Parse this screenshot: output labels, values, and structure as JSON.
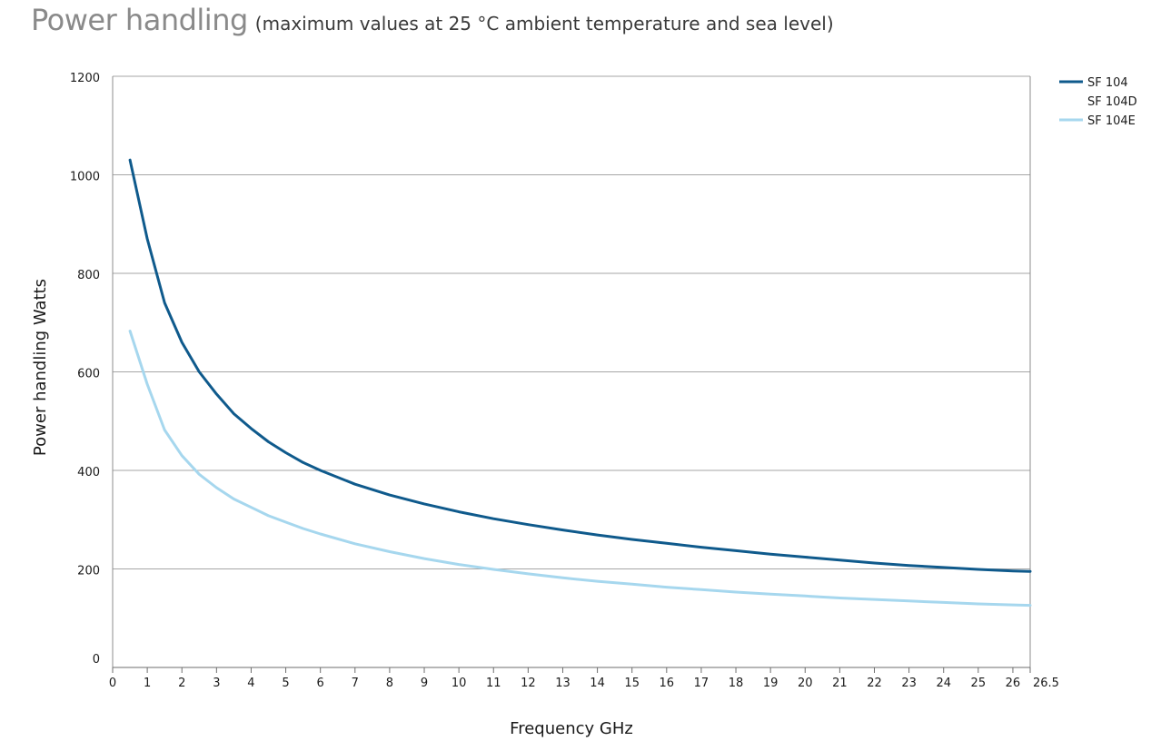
{
  "header": {
    "title": "Power handling",
    "note": "(maximum values at 25 °C ambient temperature and sea level)"
  },
  "chart_data": {
    "type": "line",
    "title": "Power handling",
    "subtitle": "(maximum values at 25 °C ambient temperature and sea level)",
    "xlabel": "Frequency GHz",
    "ylabel": "Power handling Watts",
    "xlim": [
      0,
      26.5
    ],
    "ylim": [
      0,
      1200
    ],
    "xticks": [
      0,
      1,
      2,
      3,
      4,
      5,
      6,
      7,
      8,
      9,
      10,
      11,
      12,
      13,
      14,
      15,
      16,
      17,
      18,
      19,
      20,
      21,
      22,
      23,
      24,
      25,
      26,
      26.5
    ],
    "xtick_labels": [
      "0",
      "1",
      "2",
      "3",
      "4",
      "5",
      "6",
      "7",
      "8",
      "9",
      "10",
      "11",
      "12",
      "13",
      "14",
      "15",
      "16",
      "17",
      "18",
      "19",
      "20",
      "21",
      "22",
      "23",
      "24",
      "25",
      "26",
      "26.5"
    ],
    "yticks": [
      0,
      200,
      400,
      600,
      800,
      1000,
      1200
    ],
    "ytick_labels": [
      "0",
      "200",
      "400",
      "600",
      "800",
      "1000",
      "1200"
    ],
    "grid": "horizontal",
    "legend_position": "top-right, outside plot",
    "series": [
      {
        "name": "SF 104",
        "color": "#0f5a8c",
        "x": [
          0.5,
          1,
          1.5,
          2,
          2.5,
          3,
          3.5,
          4,
          4.5,
          5,
          5.5,
          6,
          7,
          8,
          9,
          10,
          11,
          12,
          13,
          14,
          15,
          16,
          17,
          18,
          19,
          20,
          21,
          22,
          23,
          24,
          25,
          26,
          26.5
        ],
        "y": [
          1030,
          870,
          740,
          660,
          600,
          555,
          515,
          485,
          458,
          436,
          416,
          400,
          372,
          350,
          332,
          316,
          302,
          290,
          279,
          269,
          260,
          252,
          244,
          237,
          230,
          224,
          218,
          212,
          207,
          203,
          199,
          196,
          195
        ]
      },
      {
        "name": "SF 104D",
        "color": "#ffffff",
        "x": [],
        "y": []
      },
      {
        "name": "SF 104E",
        "color": "#a6d7ee",
        "x": [
          0.5,
          1,
          1.5,
          2,
          2.5,
          3,
          3.5,
          4,
          4.5,
          5,
          5.5,
          6,
          7,
          8,
          9,
          10,
          11,
          12,
          13,
          14,
          15,
          16,
          17,
          18,
          19,
          20,
          21,
          22,
          23,
          24,
          25,
          26,
          26.5
        ],
        "y": [
          683,
          575,
          482,
          430,
          392,
          365,
          342,
          325,
          308,
          295,
          282,
          271,
          251,
          235,
          221,
          209,
          199,
          190,
          182,
          175,
          169,
          163,
          158,
          153,
          149,
          145,
          141,
          138,
          135,
          132,
          129,
          127,
          126
        ]
      }
    ]
  }
}
